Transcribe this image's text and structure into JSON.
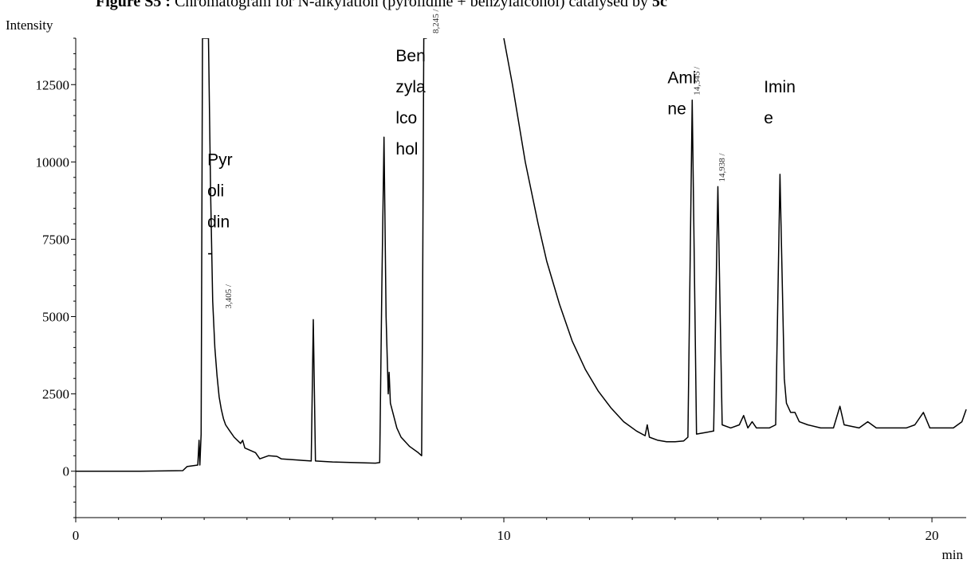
{
  "title": {
    "prefix": "Figure S5 :",
    "text": " Chromatogram for N-alkylation (pyrolidine + benzylalcohol) catalysed by ",
    "suffix": "5c"
  },
  "chart_data": {
    "type": "line",
    "ylabel": "Intensity",
    "xlabel": "min",
    "xlim": [
      0,
      20.8
    ],
    "ylim": [
      -1500,
      14000
    ],
    "x_major_ticks": [
      0,
      10,
      20
    ],
    "y_major_ticks": [
      0,
      2500,
      5000,
      7500,
      10000,
      12500
    ],
    "x_tick_labels": [
      "0",
      "10",
      "20"
    ],
    "y_tick_labels": [
      "0",
      "2500",
      "5000",
      "7500",
      "10000",
      "12500"
    ],
    "grid": false,
    "series": [
      {
        "points": [
          [
            0,
            0
          ],
          [
            1.5,
            0
          ],
          [
            2.5,
            20
          ],
          [
            2.6,
            150
          ],
          [
            2.85,
            200
          ],
          [
            2.88,
            1000
          ],
          [
            2.9,
            200
          ],
          [
            2.93,
            1200
          ],
          [
            2.96,
            14000
          ],
          [
            3.1,
            14000
          ],
          [
            3.15,
            9000
          ],
          [
            3.2,
            5500
          ],
          [
            3.25,
            4000
          ],
          [
            3.3,
            3100
          ],
          [
            3.35,
            2400
          ],
          [
            3.4,
            2000
          ],
          [
            3.45,
            1700
          ],
          [
            3.5,
            1500
          ],
          [
            3.6,
            1300
          ],
          [
            3.7,
            1100
          ],
          [
            3.85,
            900
          ],
          [
            3.9,
            1000
          ],
          [
            3.95,
            750
          ],
          [
            4.2,
            600
          ],
          [
            4.3,
            400
          ],
          [
            4.5,
            500
          ],
          [
            4.7,
            480
          ],
          [
            4.8,
            400
          ],
          [
            5.0,
            380
          ],
          [
            5.2,
            360
          ],
          [
            5.5,
            330
          ],
          [
            5.55,
            4900
          ],
          [
            5.6,
            330
          ],
          [
            6.0,
            300
          ],
          [
            6.5,
            280
          ],
          [
            7.0,
            260
          ],
          [
            7.1,
            280
          ],
          [
            7.15,
            6000
          ],
          [
            7.2,
            10800
          ],
          [
            7.25,
            5000
          ],
          [
            7.3,
            2500
          ],
          [
            7.32,
            3200
          ],
          [
            7.35,
            2200
          ],
          [
            7.5,
            1400
          ],
          [
            7.6,
            1100
          ],
          [
            7.8,
            800
          ],
          [
            8.0,
            600
          ],
          [
            8.08,
            500
          ],
          [
            8.1,
            5000
          ],
          [
            8.13,
            14000
          ],
          [
            8.2,
            14000
          ]
        ],
        "values_note": ""
      },
      {
        "points": [
          [
            10.0,
            14000
          ],
          [
            10.2,
            12500
          ],
          [
            10.5,
            10000
          ],
          [
            10.8,
            8000
          ],
          [
            11.0,
            6800
          ],
          [
            11.3,
            5400
          ],
          [
            11.6,
            4200
          ],
          [
            11.9,
            3300
          ],
          [
            12.2,
            2600
          ],
          [
            12.5,
            2050
          ],
          [
            12.8,
            1600
          ],
          [
            13.1,
            1300
          ],
          [
            13.3,
            1150
          ],
          [
            13.35,
            1500
          ],
          [
            13.4,
            1100
          ],
          [
            13.6,
            1000
          ],
          [
            13.8,
            950
          ],
          [
            14.0,
            950
          ],
          [
            14.2,
            980
          ],
          [
            14.3,
            1100
          ],
          [
            14.4,
            12000
          ],
          [
            14.5,
            1200
          ],
          [
            14.7,
            1250
          ],
          [
            14.9,
            1300
          ],
          [
            15.0,
            9200
          ],
          [
            15.1,
            1500
          ],
          [
            15.3,
            1400
          ],
          [
            15.5,
            1500
          ],
          [
            15.6,
            1800
          ],
          [
            15.7,
            1400
          ],
          [
            15.8,
            1600
          ],
          [
            15.9,
            1400
          ],
          [
            16.2,
            1400
          ],
          [
            16.35,
            1500
          ],
          [
            16.45,
            9600
          ],
          [
            16.55,
            3000
          ],
          [
            16.6,
            2200
          ],
          [
            16.7,
            1900
          ],
          [
            16.8,
            1900
          ],
          [
            16.9,
            1600
          ],
          [
            17.1,
            1500
          ],
          [
            17.4,
            1400
          ],
          [
            17.7,
            1400
          ],
          [
            17.85,
            2100
          ],
          [
            17.95,
            1500
          ],
          [
            18.3,
            1400
          ],
          [
            18.5,
            1600
          ],
          [
            18.7,
            1400
          ],
          [
            19.0,
            1400
          ],
          [
            19.4,
            1400
          ],
          [
            19.6,
            1500
          ],
          [
            19.8,
            1900
          ],
          [
            19.95,
            1400
          ],
          [
            20.2,
            1400
          ],
          [
            20.5,
            1400
          ],
          [
            20.7,
            1600
          ],
          [
            20.8,
            2000
          ]
        ]
      }
    ],
    "peak_retention_labels": [
      {
        "text": "3,405 /",
        "x": 3.405,
        "y": 5100
      },
      {
        "text": "8,245 /",
        "x": 8.245,
        "y": 14000
      },
      {
        "text": "14,345 /",
        "x": 14.345,
        "y": 12000
      },
      {
        "text": "14,938 /",
        "x": 14.938,
        "y": 9200
      }
    ],
    "annotations": [
      {
        "lines": [
          "Pyr",
          "oli",
          "din",
          "-"
        ],
        "x": 3.0,
        "y": 9950
      },
      {
        "lines": [
          "Ben",
          "zyla",
          "lco",
          "hol"
        ],
        "x": 7.4,
        "y": 13300
      },
      {
        "lines": [
          "Ami",
          "ne"
        ],
        "x": 13.75,
        "y": 12600
      },
      {
        "lines": [
          "Imin",
          "e"
        ],
        "x": 16.0,
        "y": 12300
      }
    ]
  }
}
